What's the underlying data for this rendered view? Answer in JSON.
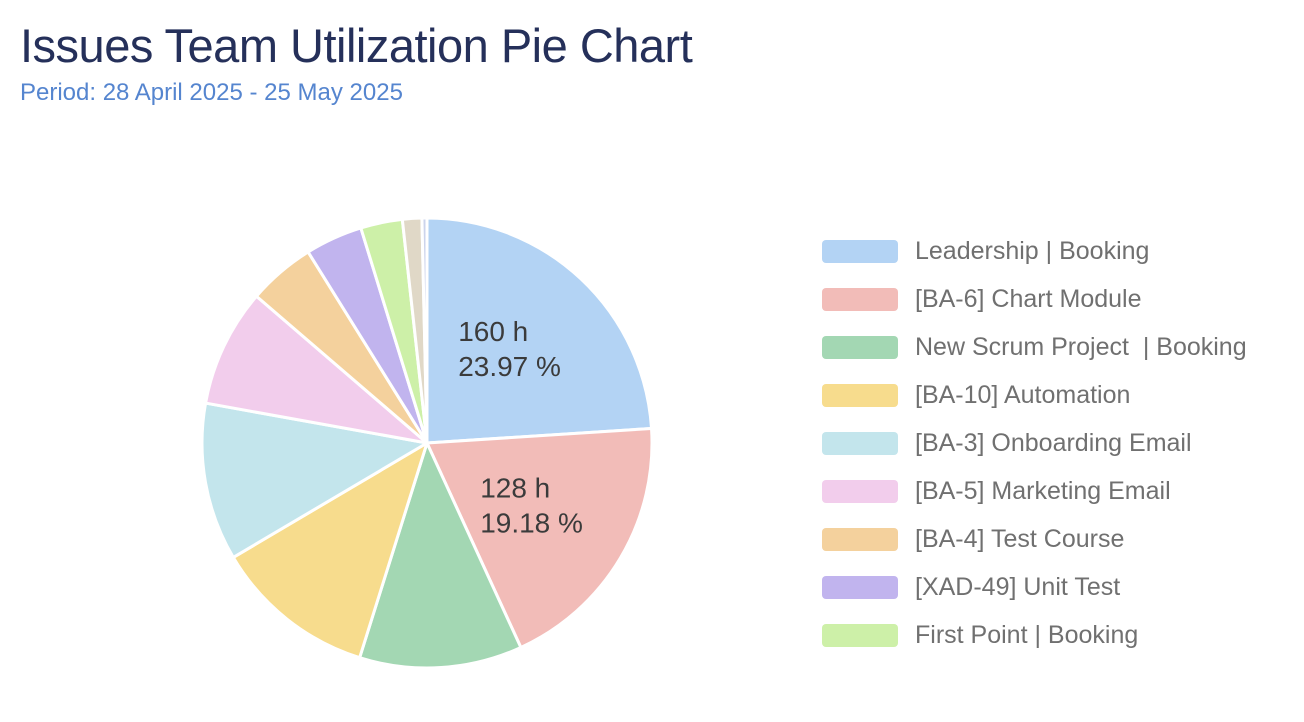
{
  "header": {
    "title": "Issues Team Utilization Pie Chart",
    "period": "Period: 28 April 2025 - 25 May 2025"
  },
  "colors": {
    "title_text": "#25305a",
    "period_text": "#5585cf",
    "legend_text": "#707070",
    "slice_label_text": "#3b3b3b",
    "slice_border": "#ffffff",
    "background": "#ffffff"
  },
  "chart_data": {
    "type": "pie",
    "title": "Issues Team Utilization Pie Chart",
    "subtitle": "Period: 28 April 2025 - 25 May 2025",
    "legend_position": "right",
    "start_angle_deg": 0,
    "direction": "clockwise",
    "slices": [
      {
        "id": "leadership-booking",
        "label": "Leadership | Booking",
        "percent": 23.97,
        "hours": 160,
        "color": "#b3d3f4",
        "label_lines": [
          "160 h",
          "23.97 %"
        ],
        "in_legend": true
      },
      {
        "id": "ba-6-chart-module",
        "label": "[BA-6] Chart Module",
        "percent": 19.18,
        "hours": 128,
        "color": "#f2bcb8",
        "label_lines": [
          "128 h",
          "19.18 %"
        ],
        "in_legend": true
      },
      {
        "id": "new-scrum-project-booking",
        "label": "New Scrum Project  | Booking",
        "percent": 11.69,
        "color": "#a3d7b3",
        "in_legend": true
      },
      {
        "id": "ba-10-automation",
        "label": "[BA-10] Automation",
        "percent": 11.67,
        "color": "#f7dc8d",
        "in_legend": true
      },
      {
        "id": "ba-3-onboarding-email",
        "label": "[BA-3] Onboarding Email",
        "percent": 11.33,
        "color": "#c3e5ec",
        "in_legend": true
      },
      {
        "id": "ba-5-marketing-email",
        "label": "[BA-5] Marketing Email",
        "percent": 8.47,
        "color": "#f2cdec",
        "in_legend": true
      },
      {
        "id": "ba-4-test-course",
        "label": "[BA-4] Test Course",
        "percent": 4.83,
        "color": "#f4d19d",
        "in_legend": true
      },
      {
        "id": "xad-49-unit-test",
        "label": "[XAD-49] Unit Test",
        "percent": 4.11,
        "color": "#c1b4ee",
        "in_legend": true
      },
      {
        "id": "first-point-booking",
        "label": "First Point | Booking",
        "percent": 3.0,
        "color": "#cdf0a8",
        "in_legend": true
      },
      {
        "id": "unlabeled-small-1",
        "label": "",
        "percent": 1.39,
        "color": "#e0d8c7",
        "in_legend": false
      },
      {
        "id": "unlabeled-small-2",
        "label": "",
        "percent": 0.36,
        "color": "#ccd4ec",
        "in_legend": false
      }
    ]
  }
}
